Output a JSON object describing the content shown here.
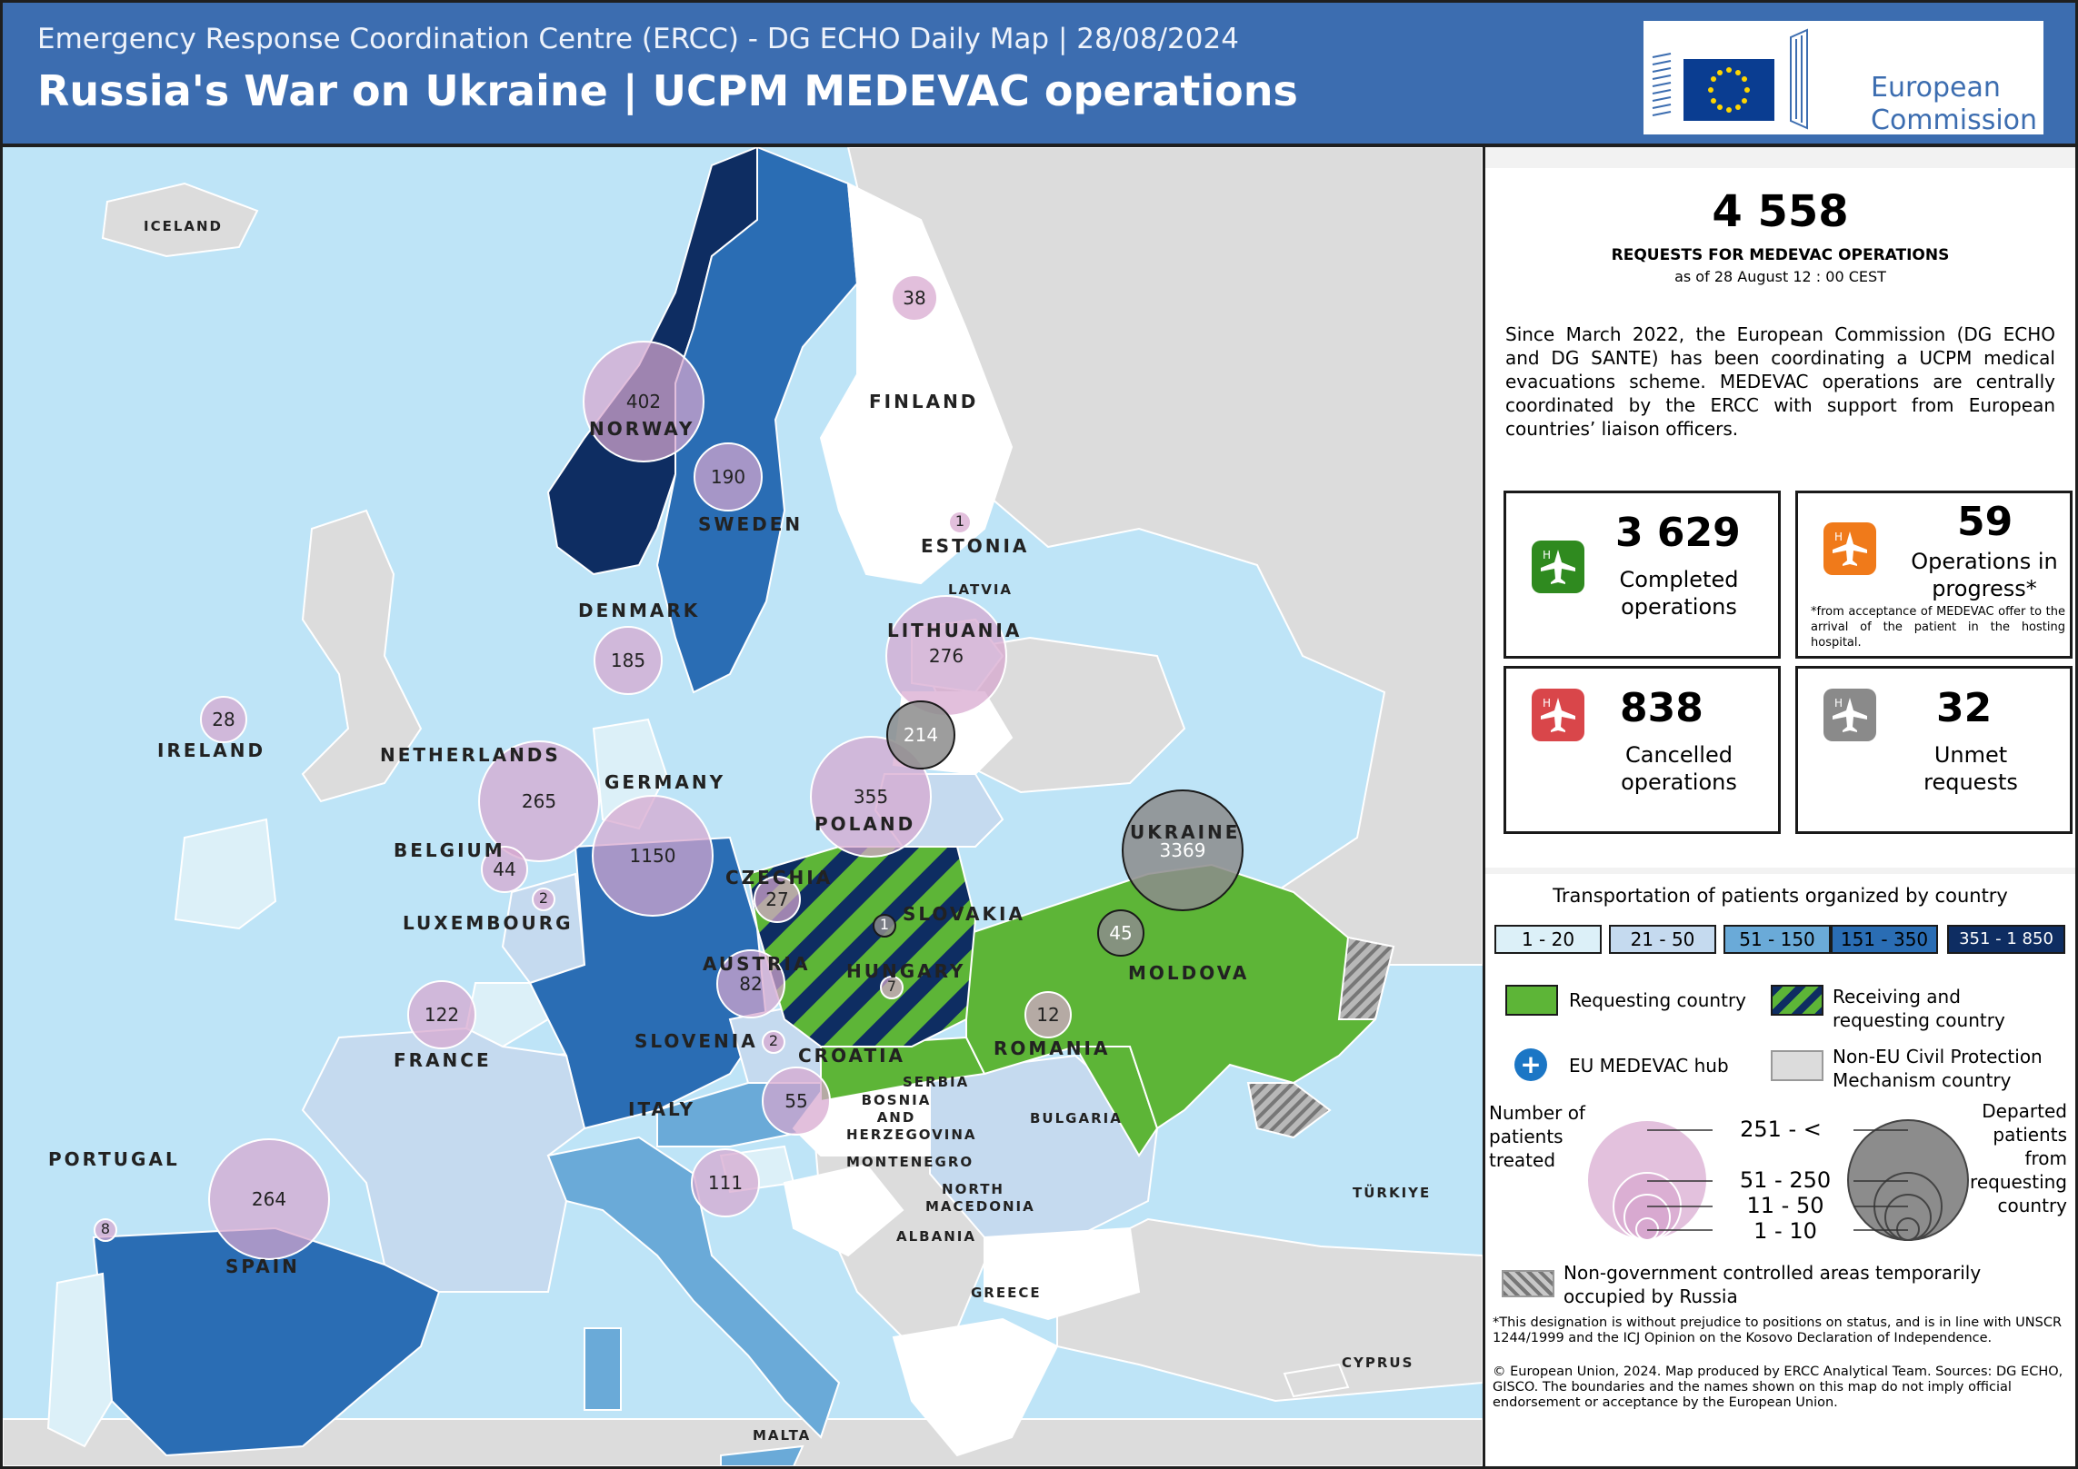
{
  "header": {
    "subtitle": "Emergency Response Coordination Centre (ERCC) - DG ECHO Daily Map | 28/08/2024",
    "title": "Russia's War on Ukraine | UCPM MEDEVAC operations",
    "logo_line1": "European",
    "logo_line2": "Commission"
  },
  "summary": {
    "total": "4 558",
    "total_label": "REQUESTS FOR MEDEVAC OPERATIONS",
    "as_of": "as of 28 August 12 : 00 CEST",
    "description": "Since March 2022, the European Commission (DG ECHO and DG SANTE) has been coordinating a UCPM medical evacuations scheme. MEDEVAC operations are centrally coordinated by the ERCC with support from European countries’ liaison officers."
  },
  "stats": {
    "completed": {
      "value": "3 629",
      "label1": "Completed",
      "label2": "operations",
      "color": "#2f8a1f"
    },
    "in_progress": {
      "value": "59",
      "label1": "Operations in",
      "label2": "progress*",
      "note": "*from acceptance of MEDEVAC offer to the arrival of the patient in the hosting hospital.",
      "color": "#f07a1a"
    },
    "cancelled": {
      "value": "838",
      "label1": "Cancelled",
      "label2": "operations",
      "color": "#d9464a"
    },
    "unmet": {
      "value": "32",
      "label1": "Unmet",
      "label2": "requests",
      "color": "#8a8a8a"
    }
  },
  "legend": {
    "title": "Transportation of patients organized by country",
    "classes": [
      {
        "label": "1 - 20",
        "color": "#dcf0f8"
      },
      {
        "label": "21 - 50",
        "color": "#c5daef"
      },
      {
        "label": "51 - 150",
        "color": "#6aaad8"
      },
      {
        "label": "151 - 350",
        "color": "#2a6db4"
      },
      {
        "label": "351 - 1 850",
        "color": "#0e2d62"
      }
    ],
    "requesting": "Requesting country",
    "receiving_requesting_1": "Receiving and",
    "receiving_requesting_2": "requesting country",
    "hub": "EU MEDEVAC hub",
    "non_eu_1": "Non-EU Civil Protection",
    "non_eu_2": "Mechanism country",
    "patients_1": "Number of",
    "patients_2": "patients",
    "patients_3": "treated",
    "departed_1": "Departed",
    "departed_2": "patients",
    "departed_3": "from",
    "departed_4": "requesting",
    "departed_5": "country",
    "size_classes": [
      "251 - <",
      "51 - 250",
      "11 - 50",
      "1 - 10"
    ],
    "occupied_1": "Non-government controlled areas temporarily",
    "occupied_2": "occupied by Russia",
    "footnote1": "*This designation is without prejudice to positions on status, and is in line with UNSCR 1244/1999 and the ICJ Opinion on the Kosovo Declaration of Independence.",
    "footnote2": "© European Union, 2024. Map produced by ERCC Analytical Team. Sources: DG ECHO, GISCO. The boundaries and the names shown on this map do not imply official endorsement or acceptance by the European Union."
  },
  "map": {
    "countries": {
      "iceland": "ICELAND",
      "norway": "NORWAY",
      "sweden": "SWEDEN",
      "finland": "FINLAND",
      "estonia": "ESTONIA",
      "latvia": "LATVIA",
      "lithuania": "LITHUANIA",
      "denmark": "DENMARK",
      "ireland": "IRELAND",
      "netherlands": "NETHERLANDS",
      "germany": "GERMANY",
      "poland": "POLAND",
      "belgium": "BELGIUM",
      "luxembourg": "LUXEMBOURG",
      "czechia": "CZECHIA",
      "slovakia": "SLOVAKIA",
      "ukraine": "UKRAINE",
      "austria": "AUSTRIA",
      "hungary": "HUNGARY",
      "moldova": "MOLDOVA",
      "france": "FRANCE",
      "slovenia": "SLOVENIA",
      "croatia": "CROATIA",
      "romania": "ROMANIA",
      "serbia": "SERBIA",
      "bosnia": "BOSNIA AND HERZEGOVINA",
      "bulgaria": "BULGARIA",
      "montenegro": "MONTENEGRO",
      "italy": "ITALY",
      "north_macedonia": "NORTH MACEDONIA",
      "albania": "ALBANIA",
      "portugal": "PORTUGAL",
      "spain": "SPAIN",
      "greece": "GREECE",
      "turkiye": "TÜRKIYE",
      "cyprus": "CYPRUS",
      "malta": "MALTA"
    },
    "patients_treated": [
      {
        "country": "Finland",
        "value": 38
      },
      {
        "country": "Norway",
        "value": 402
      },
      {
        "country": "Sweden",
        "value": 190
      },
      {
        "country": "Estonia",
        "value": 1
      },
      {
        "country": "Lithuania",
        "value": 276
      },
      {
        "country": "Denmark",
        "value": 185
      },
      {
        "country": "Ireland",
        "value": 28
      },
      {
        "country": "Netherlands",
        "value": 265
      },
      {
        "country": "Germany",
        "value": 1150
      },
      {
        "country": "Poland",
        "value": 355
      },
      {
        "country": "Belgium",
        "value": 44
      },
      {
        "country": "Luxembourg",
        "value": 2
      },
      {
        "country": "Czechia",
        "value": 27
      },
      {
        "country": "Austria",
        "value": 82
      },
      {
        "country": "Hungary",
        "value": 7
      },
      {
        "country": "France",
        "value": 122
      },
      {
        "country": "Slovenia",
        "value": 2
      },
      {
        "country": "Croatia",
        "value": 55
      },
      {
        "country": "Romania",
        "value": 12
      },
      {
        "country": "Italy",
        "value": 111
      },
      {
        "country": "Spain",
        "value": 264
      },
      {
        "country": "Portugal",
        "value": 8
      }
    ],
    "patients_departed": [
      {
        "country": "Ukraine",
        "value": 3369
      },
      {
        "country": "Poland",
        "value": 214
      },
      {
        "country": "Moldova",
        "value": 45
      },
      {
        "country": "Slovakia",
        "value": 1
      }
    ]
  }
}
